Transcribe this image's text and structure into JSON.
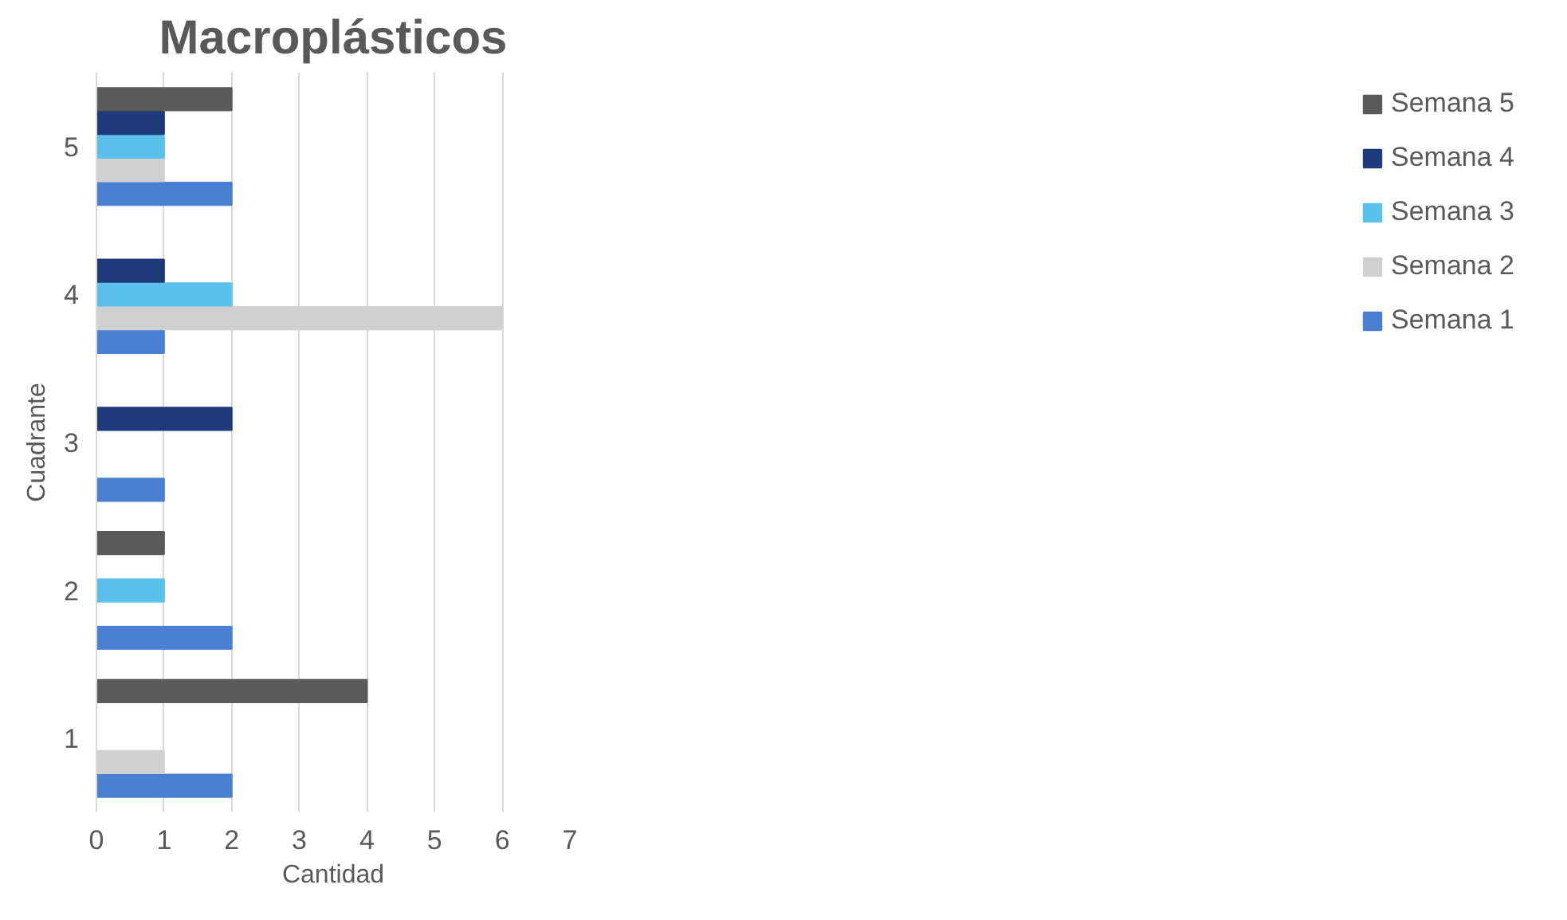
{
  "chart_data": {
    "type": "bar",
    "orientation": "horizontal",
    "title": "Macroplásticos",
    "xlabel": "Cantidad",
    "ylabel": "Cuadrante",
    "categories": [
      "5",
      "4",
      "3",
      "2",
      "1"
    ],
    "series": [
      {
        "name": "Semana 1",
        "color": "#4a7fd4",
        "values": [
          2,
          1,
          1,
          2,
          2
        ]
      },
      {
        "name": "Semana 2",
        "color": "#d0d0d0",
        "values": [
          1,
          6,
          0,
          0,
          1
        ]
      },
      {
        "name": "Semana 3",
        "color": "#5bc0eb",
        "values": [
          1,
          2,
          0,
          1,
          0
        ]
      },
      {
        "name": "Semana 4",
        "color": "#1f3a7a",
        "values": [
          1,
          1,
          2,
          0,
          0
        ]
      },
      {
        "name": "Semana 5",
        "color": "#5a5a5a",
        "values": [
          2,
          0,
          0,
          1,
          4
        ]
      }
    ],
    "xlim": [
      0,
      7
    ],
    "xticks": [
      0,
      1,
      2,
      3,
      4,
      5,
      6,
      7
    ],
    "grid": "x",
    "legend": "right"
  }
}
